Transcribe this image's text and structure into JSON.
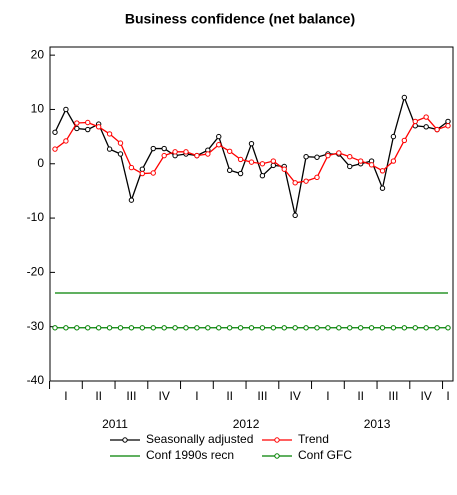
{
  "chart_data": {
    "type": "line",
    "title": "Business confidence (net balance)",
    "categories": [
      null,
      "I",
      null,
      null,
      "II",
      null,
      null,
      "III",
      null,
      null,
      "IV",
      null,
      null,
      "I",
      null,
      null,
      "II",
      null,
      null,
      "III",
      null,
      null,
      "IV",
      null,
      null,
      "I",
      null,
      null,
      "II",
      null,
      null,
      "III",
      null,
      null,
      "IV",
      null,
      "I"
    ],
    "years": [
      "2011",
      "2012",
      "2013"
    ],
    "ylim": [
      -40,
      21.5
    ],
    "yticks": [
      -40,
      -30,
      -20,
      -10,
      0,
      10,
      20
    ],
    "series": [
      {
        "name": "Seasonally adjusted",
        "color": "#000000",
        "marker": true,
        "values": [
          5.8,
          10,
          6.5,
          6.3,
          7.3,
          2.7,
          1.8,
          -6.7,
          -1,
          2.8,
          2.8,
          1.5,
          1.8,
          1.5,
          2.5,
          5,
          -1.2,
          -1.8,
          3.7,
          -2.2,
          -0.3,
          -0.5,
          -9.5,
          1.3,
          1.2,
          1.8,
          1.8,
          -0.5,
          0,
          0.5,
          -4.5,
          5,
          12.2,
          7,
          6.8,
          6.3,
          7.8
        ]
      },
      {
        "name": "Trend",
        "color": "#ff0000",
        "marker": true,
        "values": [
          2.7,
          4.2,
          7.5,
          7.6,
          6.8,
          5.5,
          3.8,
          -0.7,
          -1.8,
          -1.7,
          1.5,
          2.2,
          2.2,
          1.5,
          1.8,
          3.5,
          2.3,
          0.8,
          0.3,
          0,
          0.5,
          -1,
          -3.5,
          -3.2,
          -2.5,
          1.5,
          2,
          1.3,
          0.5,
          -0.2,
          -1.3,
          0.5,
          4.3,
          7.8,
          8.6,
          6.3,
          7
        ]
      },
      {
        "name": "Conf 1990s recn",
        "color": "#008000",
        "marker": false,
        "values": [
          -23.8,
          -23.8,
          -23.8,
          -23.8,
          -23.8,
          -23.8,
          -23.8,
          -23.8,
          -23.8,
          -23.8,
          -23.8,
          -23.8,
          -23.8,
          -23.8,
          -23.8,
          -23.8,
          -23.8,
          -23.8,
          -23.8,
          -23.8,
          -23.8,
          -23.8,
          -23.8,
          -23.8,
          -23.8,
          -23.8,
          -23.8,
          -23.8,
          -23.8,
          -23.8,
          -23.8,
          -23.8,
          -23.8,
          -23.8,
          -23.8,
          -23.8,
          -23.8
        ]
      },
      {
        "name": "Conf GFC",
        "color": "#008000",
        "marker": true,
        "values": [
          -30.2,
          -30.2,
          -30.2,
          -30.2,
          -30.2,
          -30.2,
          -30.2,
          -30.2,
          -30.2,
          -30.2,
          -30.2,
          -30.2,
          -30.2,
          -30.2,
          -30.2,
          -30.2,
          -30.2,
          -30.2,
          -30.2,
          -30.2,
          -30.2,
          -30.2,
          -30.2,
          -30.2,
          -30.2,
          -30.2,
          -30.2,
          -30.2,
          -30.2,
          -30.2,
          -30.2,
          -30.2,
          -30.2,
          -30.2,
          -30.2,
          -30.2,
          -30.2
        ]
      }
    ]
  }
}
